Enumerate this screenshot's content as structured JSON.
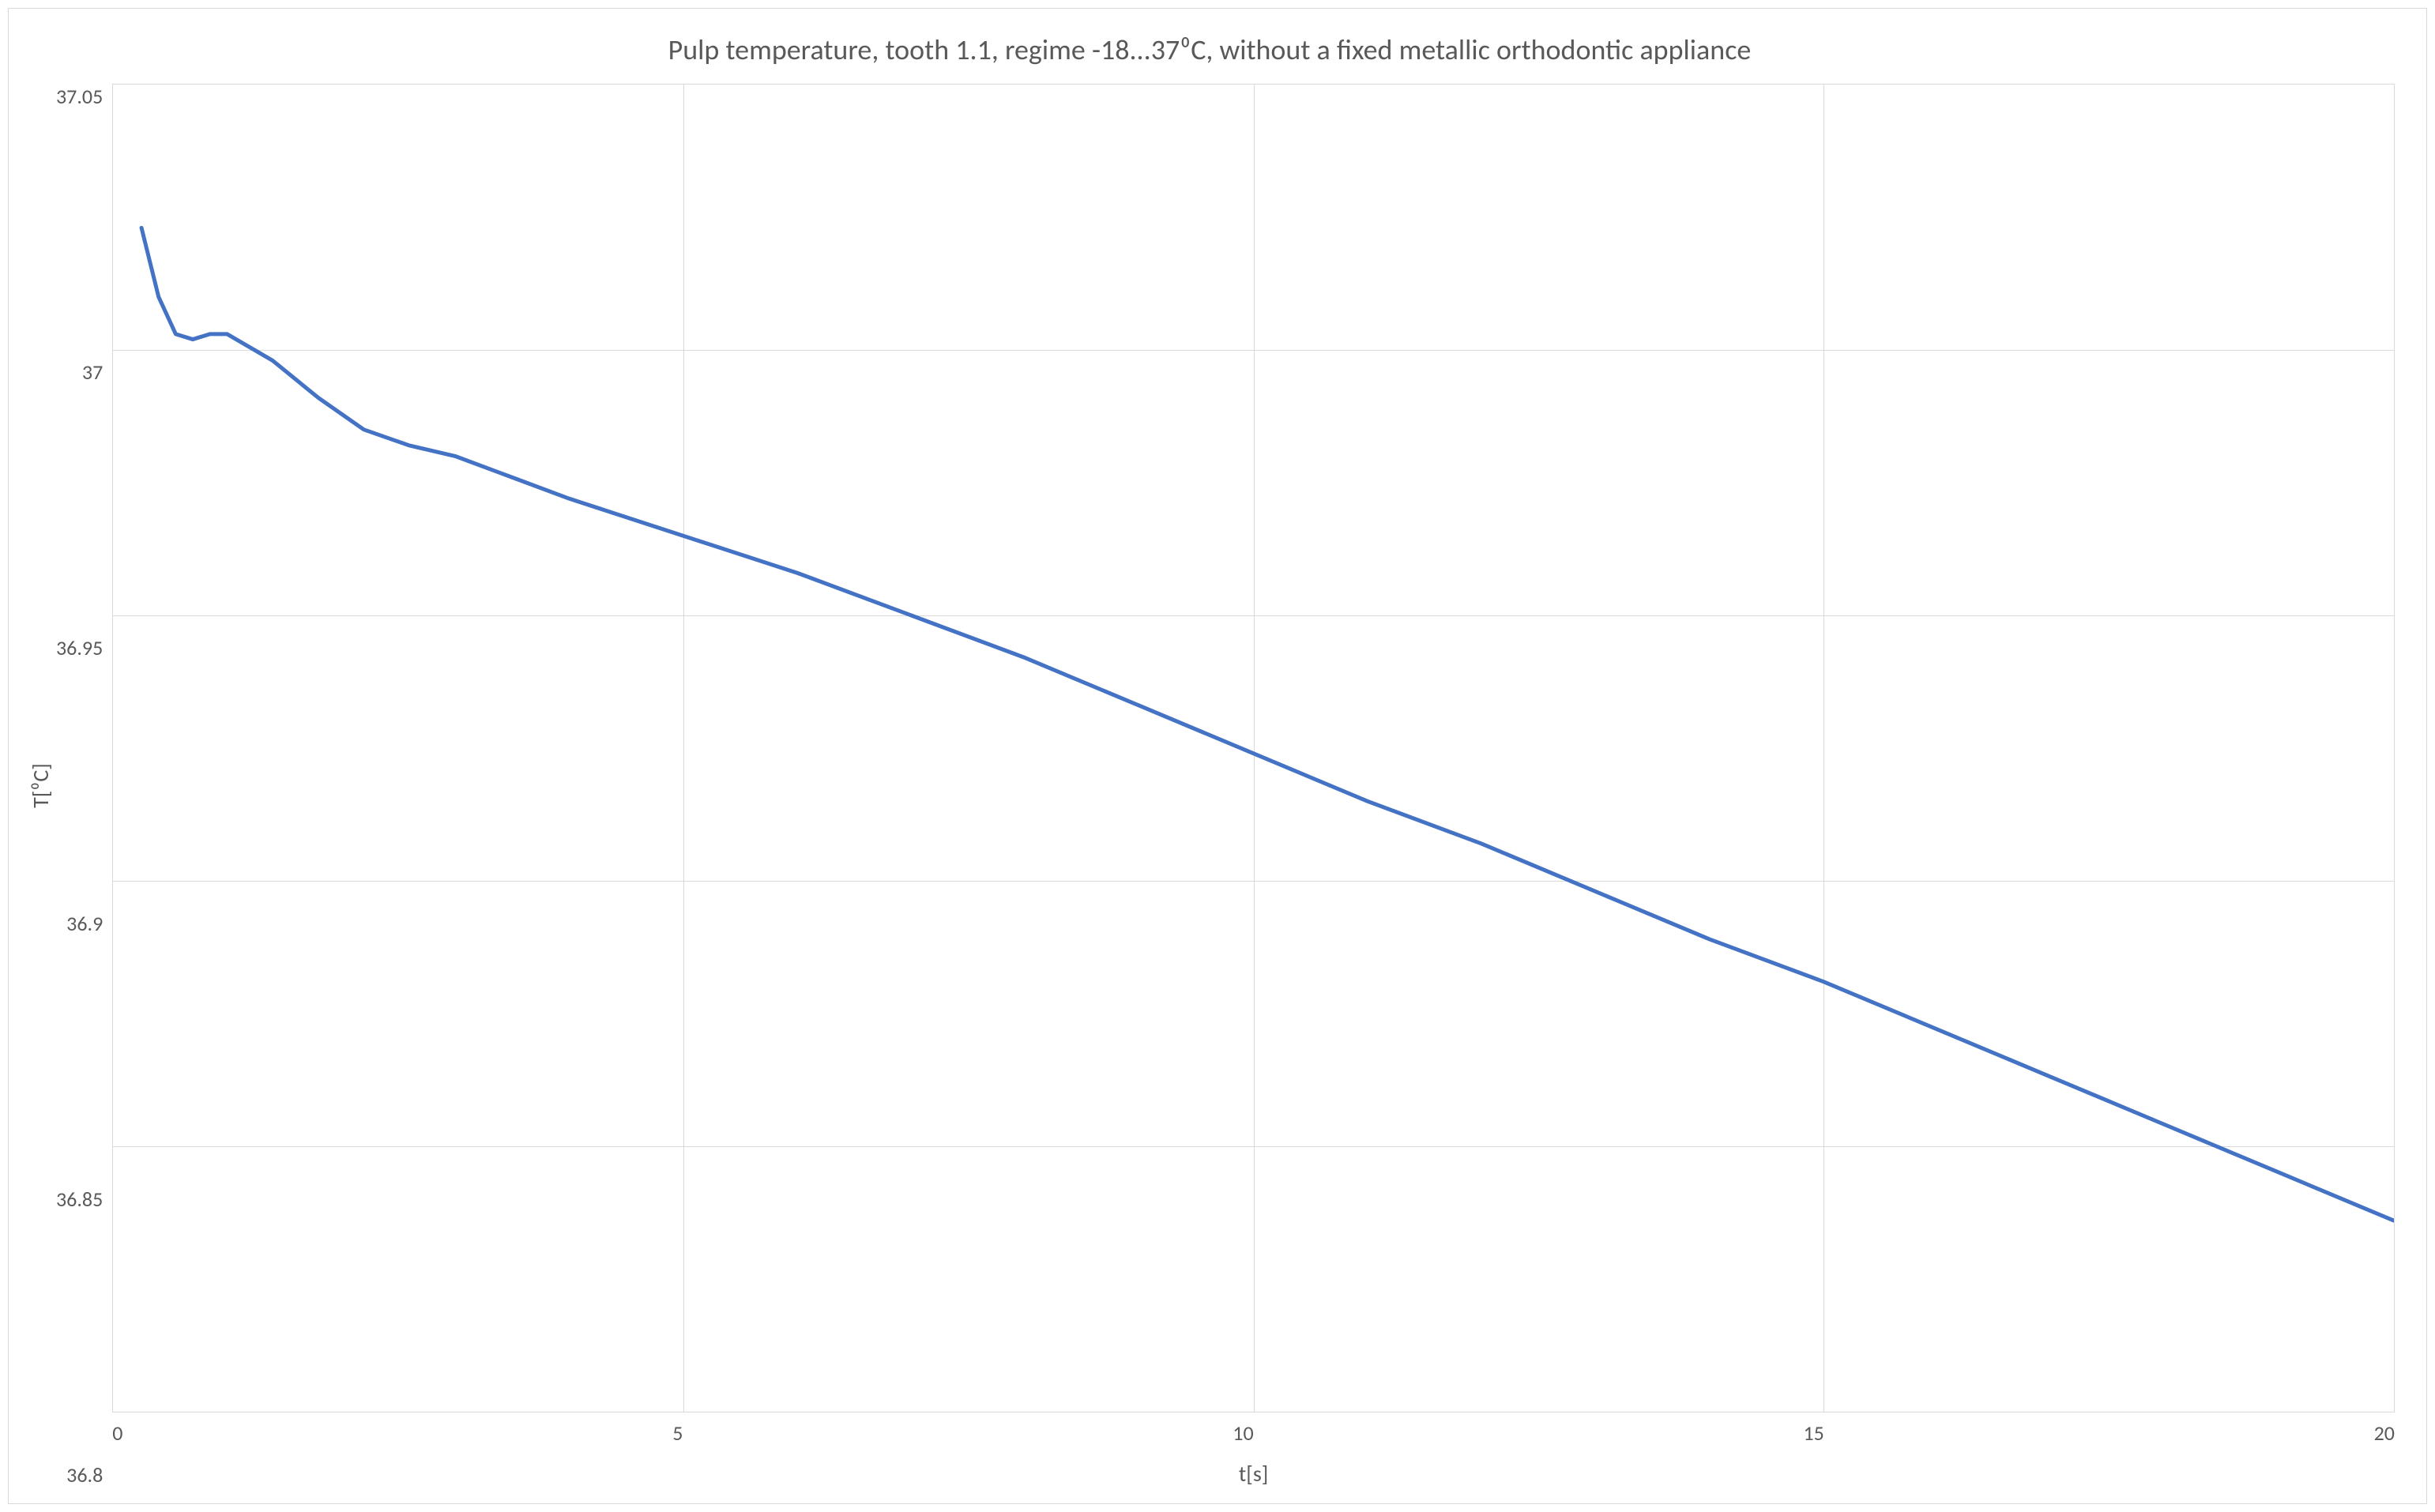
{
  "chart": {
    "type": "line",
    "title": "Pulp temperature, tooth 1.1, regime -18...37⁰C, without a fixed metallic orthodontic appliance",
    "title_fontsize": 36,
    "title_color": "#595959",
    "xlabel": "t[s]",
    "ylabel": "T[⁰C]",
    "label_fontsize": 28,
    "label_color": "#595959",
    "tick_fontsize": 26,
    "tick_color": "#595959",
    "background_color": "#ffffff",
    "frame_border_color": "#d9d9d9",
    "plot_border_color": "#d9d9d9",
    "grid_color": "#d9d9d9",
    "xlim": [
      0,
      20
    ],
    "ylim": [
      36.8,
      37.05
    ],
    "xticks": [
      0,
      5,
      10,
      15,
      20
    ],
    "yticks": [
      37.05,
      37,
      36.95,
      36.9,
      36.85,
      36.8
    ],
    "series": [
      {
        "name": "pulp-temperature",
        "color": "#4472c4",
        "line_width": 5,
        "x": [
          0.25,
          0.4,
          0.55,
          0.7,
          0.85,
          1.0,
          1.4,
          1.8,
          2.2,
          2.6,
          3.0,
          3.5,
          4.0,
          5.0,
          6.0,
          7.0,
          8.0,
          9.0,
          10.0,
          11.0,
          12.0,
          13.0,
          14.0,
          15.0,
          16.0,
          17.0,
          18.0,
          19.0,
          20.0
        ],
        "y": [
          37.023,
          37.01,
          37.003,
          37.002,
          37.003,
          37.003,
          36.998,
          36.991,
          36.985,
          36.982,
          36.98,
          36.976,
          36.972,
          36.965,
          36.958,
          36.95,
          36.942,
          36.933,
          36.924,
          36.915,
          36.907,
          36.898,
          36.889,
          36.881,
          36.872,
          36.863,
          36.854,
          36.845,
          36.836
        ]
      }
    ]
  }
}
